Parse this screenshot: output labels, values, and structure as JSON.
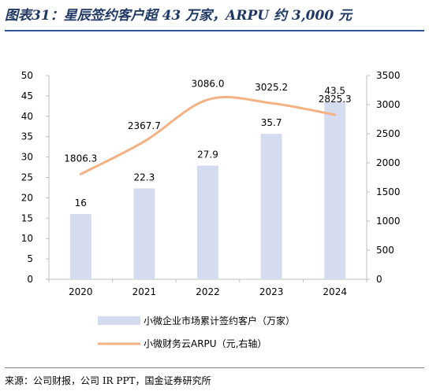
{
  "header": {
    "title": "图表31：星辰签约客户超 43 万家，ARPU 约 3,000 元"
  },
  "footer": {
    "source": "来源：公司财报，公司 IR PPT，国金证券研究所"
  },
  "chart_data": {
    "type": "bar+line",
    "categories": [
      "2020",
      "2021",
      "2022",
      "2023",
      "2024"
    ],
    "series": [
      {
        "name": "小微企业市场累计签约客户（万家）",
        "type": "bar",
        "axis": "left",
        "color": "#d6dcf0",
        "values": [
          16,
          22.3,
          27.9,
          35.7,
          43.5
        ],
        "labels": [
          "16",
          "22.3",
          "27.9",
          "35.7",
          "43.5"
        ]
      },
      {
        "name": "小微财务云ARPU（元,右轴）",
        "type": "line",
        "axis": "right",
        "color": "#f4b183",
        "values": [
          1806.3,
          2367.7,
          3086.0,
          3025.2,
          2825.3
        ],
        "labels": [
          "1806.3",
          "2367.7",
          "3086.0",
          "3025.2",
          "2825.3"
        ]
      }
    ],
    "y_left": {
      "min": 0,
      "max": 50,
      "ticks": [
        0,
        5,
        10,
        15,
        20,
        25,
        30,
        35,
        40,
        45,
        50
      ]
    },
    "y_right": {
      "min": 0,
      "max": 3500,
      "ticks": [
        0,
        500,
        1000,
        1500,
        2000,
        2500,
        3000,
        3500
      ]
    },
    "grid": false,
    "legend_position": "bottom"
  }
}
